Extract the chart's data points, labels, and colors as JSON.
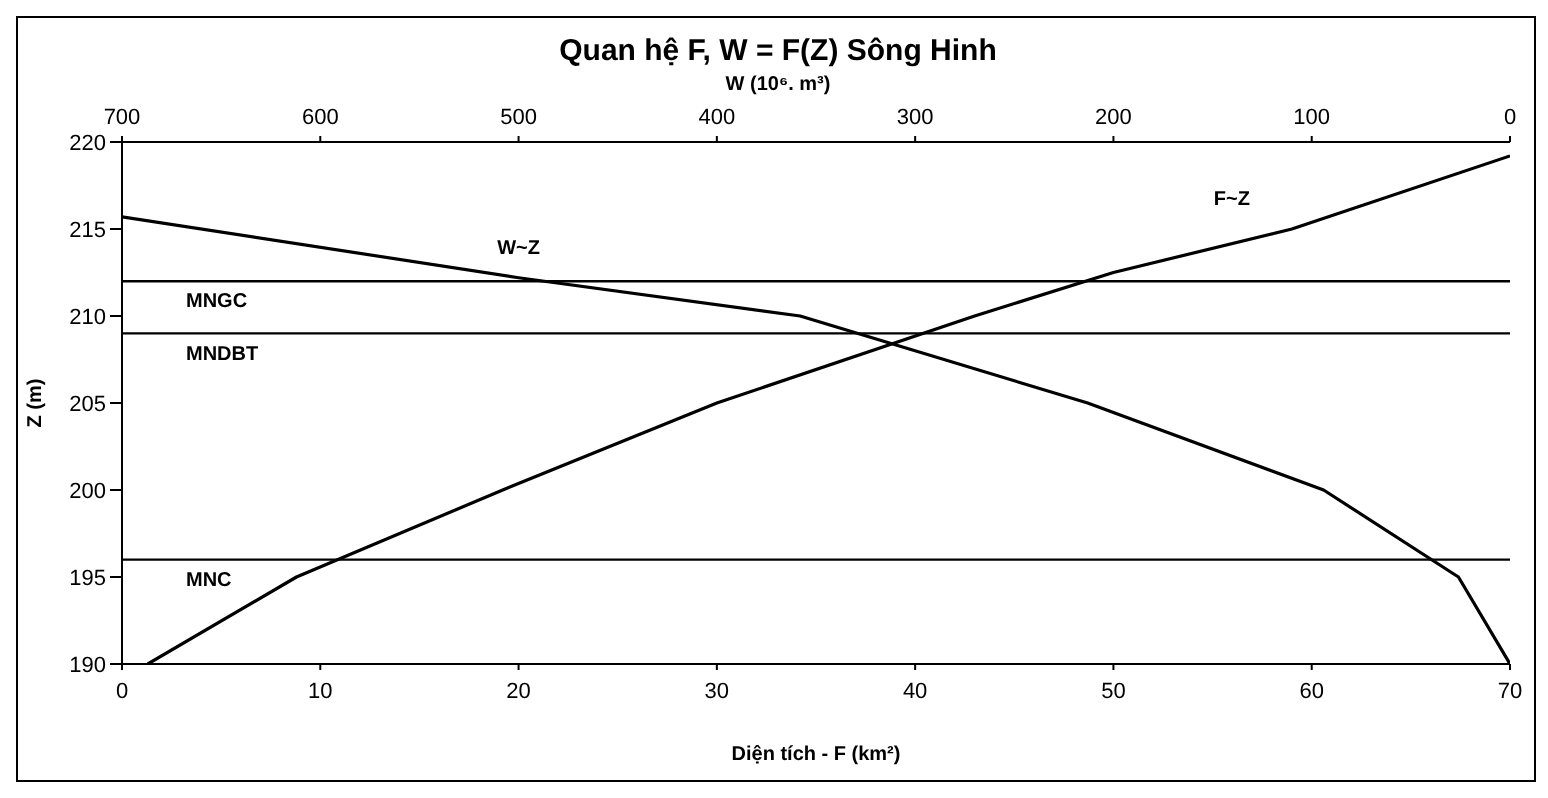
{
  "chart_data": {
    "type": "line",
    "title": "Quan hệ F, W = F(Z) Sông Hinh",
    "x2label": "W (10⁶. m³)",
    "xlabel": "Diện tích - F (km²)",
    "ylabel": "Z (m)",
    "xlim": [
      0,
      70
    ],
    "xticks": [
      0,
      10,
      20,
      30,
      40,
      50,
      60,
      70
    ],
    "x2lim": [
      700,
      0
    ],
    "x2ticks": [
      700,
      600,
      500,
      400,
      300,
      200,
      100,
      0
    ],
    "ylim": [
      190,
      220
    ],
    "yticks": [
      190,
      195,
      200,
      205,
      210,
      215,
      220
    ],
    "grid": false,
    "legend": false,
    "marker": "none",
    "line_style": "solid",
    "series": [
      {
        "name": "F~Z",
        "color": "#000000",
        "x": [
          1.3,
          8.8,
          19.2,
          30,
          43,
          50,
          59,
          70
        ],
        "values": [
          190,
          195,
          200,
          205,
          210,
          212.5,
          215,
          219.2
        ]
      },
      {
        "name": "W~Z",
        "color": "#000000",
        "axis": "x2",
        "x": [
          0,
          26,
          94,
          213,
          358,
          500,
          700
        ],
        "values": [
          190,
          195,
          200,
          205,
          210,
          212.2,
          215.7
        ]
      }
    ],
    "ref_lines": [
      {
        "axis": "y",
        "value": 212,
        "label": "MNGC",
        "color": "#000000"
      },
      {
        "axis": "y",
        "value": 209,
        "label": "MNDBT",
        "color": "#000000"
      },
      {
        "axis": "y",
        "value": 196,
        "label": "MNC",
        "color": "#000000"
      }
    ]
  }
}
